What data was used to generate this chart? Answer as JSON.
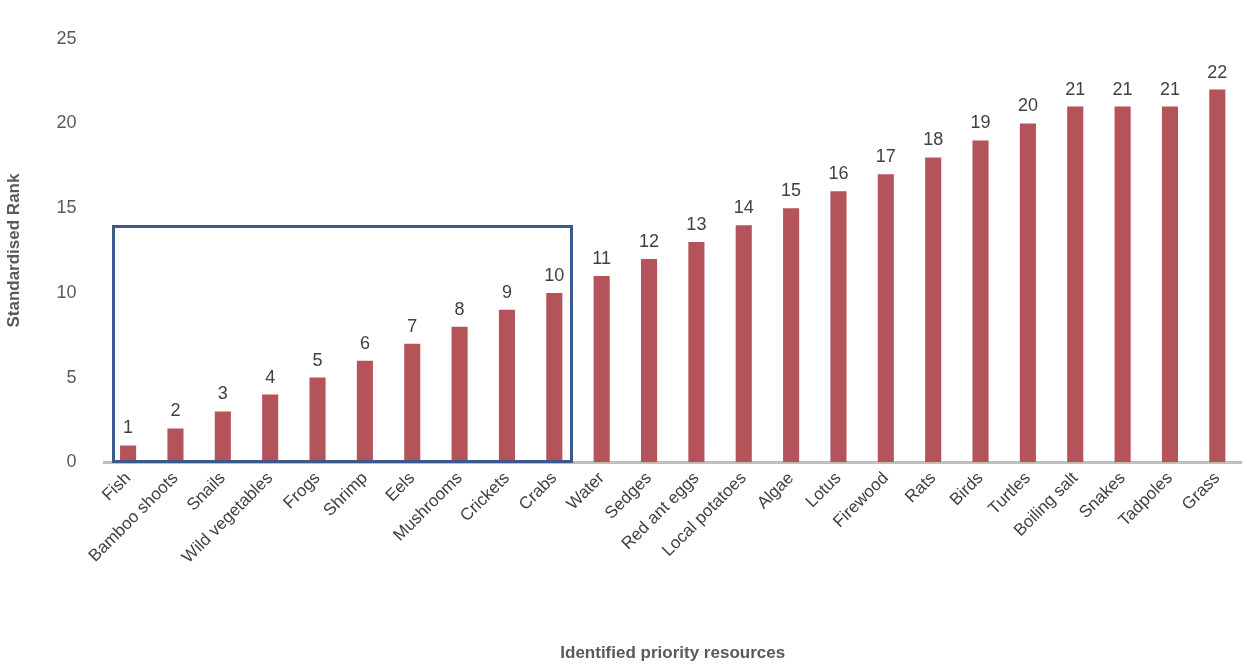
{
  "chart_data": {
    "type": "bar",
    "xlabel": "Identified priority resources",
    "ylabel": "Standardised Rank",
    "categories": [
      "Fish",
      "Bamboo shoots",
      "Snails",
      "Wild vegetables",
      "Frogs",
      "Shrimp",
      "Eels",
      "Mushrooms",
      "Crickets",
      "Crabs",
      "Water",
      "Sedges",
      "Red ant eggs",
      "Local potatoes",
      "Algae",
      "Lotus",
      "Firewood",
      "Rats",
      "Birds",
      "Turtles",
      "Boiling salt",
      "Snakes",
      "Tadpoles",
      "Grass"
    ],
    "values": [
      1,
      2,
      3,
      4,
      5,
      6,
      7,
      8,
      9,
      10,
      11,
      12,
      13,
      14,
      15,
      16,
      17,
      18,
      19,
      20,
      21,
      21,
      21,
      22
    ],
    "color": "#b5535a",
    "ylim": [
      0,
      25
    ],
    "yticks": [
      0,
      5,
      10,
      15,
      20,
      25
    ],
    "grid": false,
    "legend": false,
    "data_labels": true
  }
}
